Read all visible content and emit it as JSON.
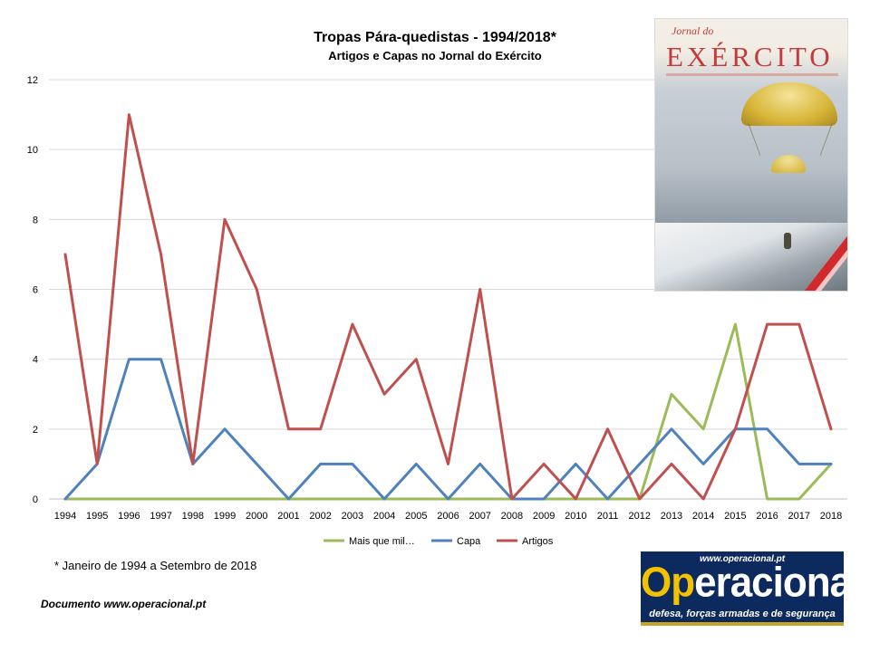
{
  "chart_data": {
    "type": "line",
    "title": "Tropas Pára-quedistas - 1994/2018*",
    "subtitle": "Artigos e Capas no Jornal do Exército",
    "xlabel": "",
    "ylabel": "",
    "x": [
      "1994",
      "1995",
      "1996",
      "1997",
      "1998",
      "1999",
      "2000",
      "2001",
      "2002",
      "2003",
      "2004",
      "2005",
      "2006",
      "2007",
      "2008",
      "2009",
      "2010",
      "2011",
      "2012",
      "2013",
      "2014",
      "2015",
      "2016",
      "2017",
      "2018"
    ],
    "ylim": [
      0,
      12
    ],
    "yticks": [
      0,
      2,
      4,
      6,
      8,
      10,
      12
    ],
    "grid": true,
    "legend_position": "bottom",
    "series": [
      {
        "name": "Mais que mil…",
        "color": "#9bbb59",
        "values": [
          0,
          0,
          0,
          0,
          0,
          0,
          0,
          0,
          0,
          0,
          0,
          0,
          0,
          0,
          0,
          0,
          0,
          0,
          0,
          3,
          2,
          5,
          0,
          0,
          1
        ]
      },
      {
        "name": "Capa",
        "color": "#4f81bd",
        "values": [
          0,
          1,
          4,
          4,
          1,
          2,
          1,
          0,
          1,
          1,
          0,
          1,
          0,
          1,
          0,
          0,
          1,
          0,
          1,
          2,
          1,
          2,
          2,
          1,
          1
        ]
      },
      {
        "name": "Artigos",
        "color": "#c0504d",
        "values": [
          7,
          1,
          11,
          7,
          1,
          8,
          6,
          2,
          2,
          5,
          3,
          4,
          1,
          6,
          0,
          1,
          0,
          2,
          0,
          1,
          0,
          2,
          5,
          5,
          2
        ]
      }
    ]
  },
  "footnote": "* Janeiro de 1994 a Setembro de 2018",
  "source": "Documento www.operacional.pt",
  "cover": {
    "masthead_small": "Jornal do",
    "masthead": "EXÉRCITO"
  },
  "logo": {
    "url": "www.operacional.pt",
    "name_first": "Op",
    "name_rest": "eracional",
    "tagline": "defesa, forças armadas e de segurança"
  }
}
